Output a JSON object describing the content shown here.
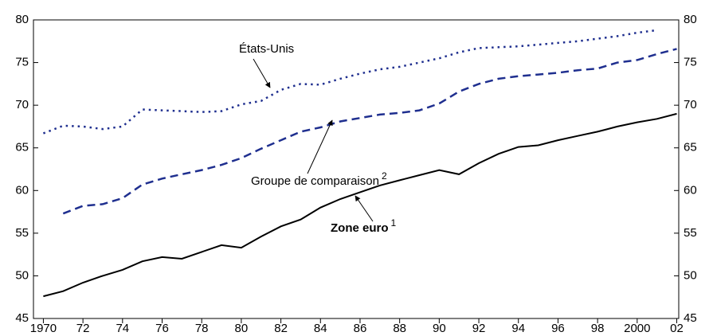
{
  "chart_data": {
    "type": "line",
    "x": [
      1970,
      1971,
      1972,
      1973,
      1974,
      1975,
      1976,
      1977,
      1978,
      1979,
      1980,
      1981,
      1982,
      1983,
      1984,
      1985,
      1986,
      1987,
      1988,
      1989,
      1990,
      1991,
      1992,
      1993,
      1994,
      1995,
      1996,
      1997,
      1998,
      1999,
      2000,
      2001,
      2002
    ],
    "series": [
      {
        "name": "Zone euro",
        "note": "1",
        "color": "#000000",
        "style": "solid",
        "values": [
          47.6,
          48.2,
          49.2,
          50.0,
          50.7,
          51.7,
          52.2,
          52.0,
          52.8,
          53.6,
          53.3,
          54.6,
          55.8,
          56.6,
          58.0,
          59.0,
          59.8,
          60.6,
          61.2,
          61.8,
          62.4,
          61.9,
          63.2,
          64.3,
          65.1,
          65.3,
          65.9,
          66.4,
          66.9,
          67.5,
          68.0,
          68.4,
          69.0
        ]
      },
      {
        "name": "Groupe de comparaison",
        "note": "2",
        "color": "#1f2f8f",
        "style": "dashed",
        "values": [
          null,
          57.3,
          58.2,
          58.4,
          59.1,
          60.7,
          61.4,
          61.9,
          62.4,
          63.0,
          63.8,
          64.9,
          65.9,
          66.9,
          67.4,
          68.1,
          68.5,
          68.9,
          69.1,
          69.4,
          70.2,
          71.6,
          72.5,
          73.1,
          73.4,
          73.6,
          73.8,
          74.1,
          74.3,
          75.0,
          75.3,
          76.0,
          76.6
        ]
      },
      {
        "name": "États-Unis",
        "color": "#1f2f8f",
        "style": "dotted",
        "values": [
          66.7,
          67.6,
          67.5,
          67.2,
          67.5,
          69.5,
          69.4,
          69.3,
          69.2,
          69.3,
          70.1,
          70.5,
          71.8,
          72.5,
          72.4,
          73.1,
          73.7,
          74.2,
          74.5,
          75.0,
          75.5,
          76.2,
          76.7,
          76.8,
          76.9,
          77.1,
          77.3,
          77.5,
          77.8,
          78.1,
          78.5,
          78.8,
          null
        ]
      }
    ],
    "xlim": [
      1969.5,
      2002.1
    ],
    "xticks": [
      1970,
      {
        "value": 1972,
        "label": "72"
      },
      {
        "value": 1974,
        "label": "74"
      },
      {
        "value": 1976,
        "label": "76"
      },
      {
        "value": 1978,
        "label": "78"
      },
      {
        "value": 1980,
        "label": "80"
      },
      {
        "value": 1982,
        "label": "82"
      },
      {
        "value": 1984,
        "label": "84"
      },
      {
        "value": 1986,
        "label": "86"
      },
      {
        "value": 1988,
        "label": "88"
      },
      {
        "value": 1990,
        "label": "90"
      },
      {
        "value": 1992,
        "label": "92"
      },
      {
        "value": 1994,
        "label": "94"
      },
      {
        "value": 1996,
        "label": "96"
      },
      {
        "value": 1998,
        "label": "98"
      },
      2000,
      {
        "value": 2002,
        "label": "02"
      }
    ],
    "ylim": [
      45,
      80
    ],
    "yticks": [
      45,
      50,
      55,
      60,
      65,
      70,
      75,
      80
    ],
    "y2lim": [
      45,
      80
    ],
    "y2ticks": [
      45,
      50,
      55,
      60,
      65,
      70,
      75,
      80
    ]
  }
}
